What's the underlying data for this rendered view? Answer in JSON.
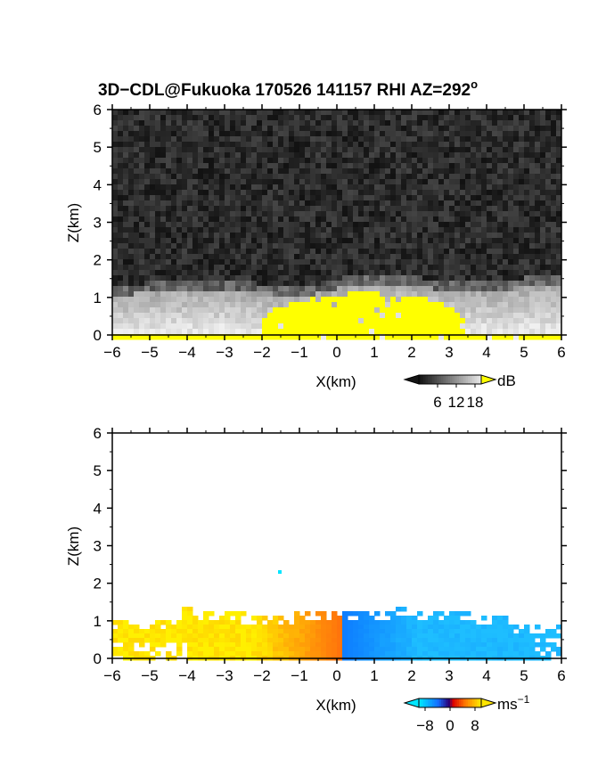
{
  "title_main": "3D−CDL@Fukuoka 170526 141157 RHI AZ=292",
  "title_sup": "o",
  "chart_data": [
    {
      "type": "heatmap",
      "quantity": "reflectivity",
      "xlabel": "X(km)",
      "ylabel": "Z(km)",
      "xlim": [
        -6,
        6
      ],
      "ylim": [
        0,
        6
      ],
      "xticks": [
        "−6",
        "−5",
        "−4",
        "−3",
        "−2",
        "−1",
        "0",
        "1",
        "2",
        "3",
        "4",
        "5",
        "6"
      ],
      "yticks": [
        "0",
        "1",
        "2",
        "3",
        "4",
        "5",
        "6"
      ],
      "colorbar": {
        "unit": "dB",
        "ticks": [
          "6",
          "12",
          "18"
        ],
        "range": [
          0,
          20
        ],
        "over_color": "#ffff00"
      },
      "regions": [
        {
          "kind": "background_noise",
          "z_top": 6,
          "level_db": 1
        },
        {
          "kind": "boundary_layer",
          "x_range": [
            -6,
            6
          ],
          "z_top_approx": 1.2,
          "level_db": 12
        },
        {
          "kind": "saturated_core",
          "x_range": [
            -2.0,
            3.5
          ],
          "z_top_approx": 1.1,
          "level_db": 20
        }
      ]
    },
    {
      "type": "heatmap",
      "quantity": "doppler_velocity",
      "xlabel": "X(km)",
      "ylabel": "Z(km)",
      "xlim": [
        -6,
        6
      ],
      "ylim": [
        0,
        6
      ],
      "xticks": [
        "−6",
        "−5",
        "−4",
        "−3",
        "−2",
        "−1",
        "0",
        "1",
        "2",
        "3",
        "4",
        "5",
        "6"
      ],
      "yticks": [
        "0",
        "1",
        "2",
        "3",
        "4",
        "5",
        "6"
      ],
      "colorbar": {
        "unit": "ms",
        "unit_sup": "−1",
        "ticks": [
          "−8",
          "0",
          "8"
        ],
        "range": [
          -10,
          10
        ]
      },
      "regions": [
        {
          "kind": "receding",
          "x_range": [
            -6,
            0.2
          ],
          "z_top_approx": 1.3,
          "velocity_ms": 6
        },
        {
          "kind": "approaching",
          "x_range": [
            0.2,
            6
          ],
          "z_top_approx": 1.2,
          "velocity_ms": -6
        }
      ]
    }
  ],
  "colors": {
    "ref_over": "#ffff00",
    "vel_pos": "#ffa000",
    "vel_neg": "#1e90ff"
  }
}
